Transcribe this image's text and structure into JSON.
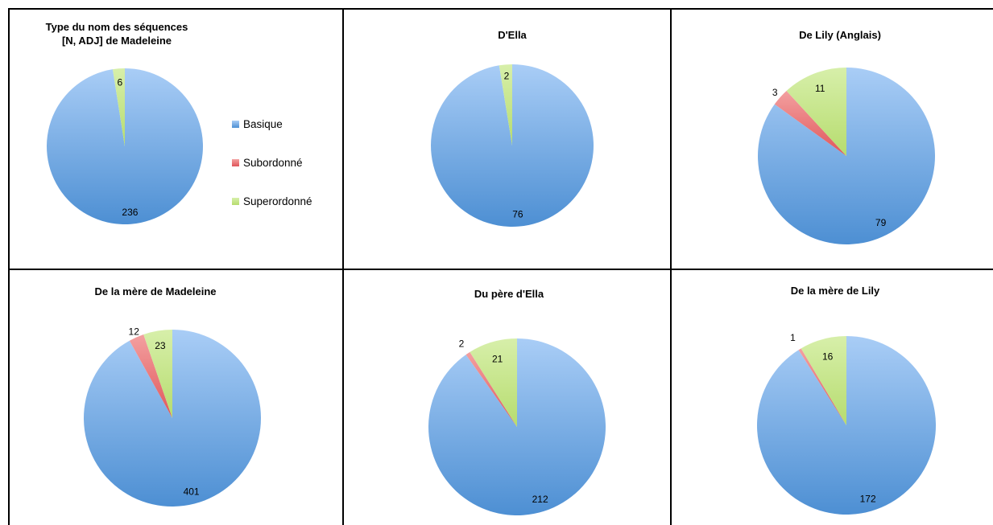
{
  "colors": {
    "Basique": "#5b9bd5",
    "Subordonné": "#e0565a",
    "Superordonné": "#b6dc6e"
  },
  "legend": {
    "items": [
      "Basique",
      "Subordonné",
      "Superordonné"
    ]
  },
  "chart_data": [
    {
      "type": "pie",
      "title": "Type du nom des séquences\n[N, ADJ] de Madeleine",
      "categories": [
        "Basique",
        "Subordonné",
        "Superordonné"
      ],
      "values": [
        236,
        0,
        6
      ],
      "labels": [
        "236",
        "",
        "6"
      ]
    },
    {
      "type": "pie",
      "title": "D'Ella",
      "categories": [
        "Basique",
        "Subordonné",
        "Superordonné"
      ],
      "values": [
        76,
        0,
        2
      ],
      "labels": [
        "76",
        "",
        "2"
      ]
    },
    {
      "type": "pie",
      "title": "De Lily (Anglais)",
      "categories": [
        "Basique",
        "Subordonné",
        "Superordonné"
      ],
      "values": [
        79,
        3,
        11
      ],
      "labels": [
        "79",
        "3",
        "11"
      ]
    },
    {
      "type": "pie",
      "title": "De la mère de Madeleine",
      "categories": [
        "Basique",
        "Subordonné",
        "Superordonné"
      ],
      "values": [
        401,
        12,
        23
      ],
      "labels": [
        "401",
        "12",
        "23"
      ]
    },
    {
      "type": "pie",
      "title": "Du père d'Ella",
      "categories": [
        "Basique",
        "Subordonné",
        "Superordonné"
      ],
      "values": [
        212,
        2,
        21
      ],
      "labels": [
        "212",
        "2",
        "21"
      ]
    },
    {
      "type": "pie",
      "title": "De la mère de Lily",
      "categories": [
        "Basique",
        "Subordonné",
        "Superordonné"
      ],
      "values": [
        172,
        1,
        16
      ],
      "labels": [
        "172",
        "1",
        "16"
      ]
    }
  ]
}
